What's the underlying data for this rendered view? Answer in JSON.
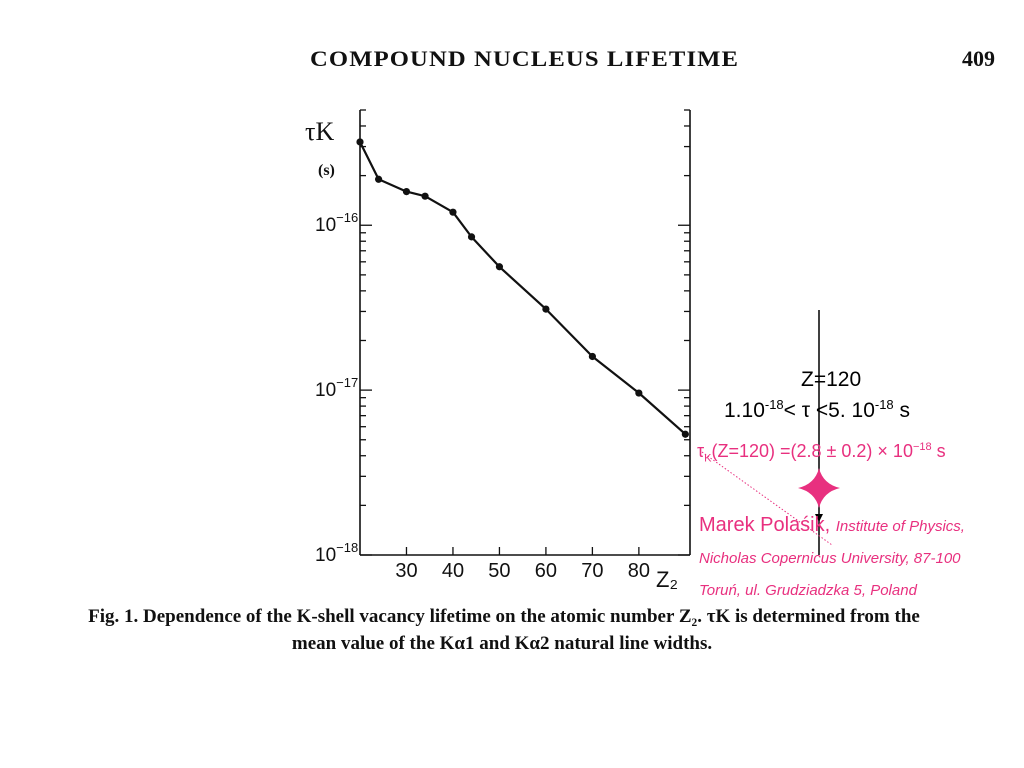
{
  "header": {
    "title": "COMPOUND NUCLEUS LIFETIME",
    "page_number": "409"
  },
  "caption": {
    "line1": "Fig. 1. Dependence of the K-shell vacancy lifetime on the atomic number Z₂. τK is determined from the",
    "line2": "mean value of the Kα1 and Kα2 natural line widths."
  },
  "annotations": {
    "z_label": "Z=120",
    "range_left": "1.10",
    "range_left_exp": "-18",
    "range_mid": "< τ <5. 10",
    "range_right_exp": "-18",
    "range_unit": " s",
    "tau_symbol": "τ",
    "tau_sub": "K",
    "tau_value_text": "(Z=120)  =(2.8 ± 0.2) × 10",
    "tau_value_exp": "−18",
    "tau_value_unit": " s",
    "author": "Marek Polaśik,",
    "institute": "Institute of Physics,",
    "affiliation_1": "Nicholas Copernicus University, 87-100",
    "affiliation_2": "Toruń, ul. Grudziadzka 5, Poland",
    "accent_color": "#e8307f"
  },
  "chart_data": {
    "type": "line",
    "yscale": "log",
    "ylabel_main": "τK",
    "ylabel_unit": "(s)",
    "xlabel": "Z₂",
    "xlim": [
      20,
      91
    ],
    "ylim": [
      1e-18,
      5e-16
    ],
    "x_ticks": [
      30,
      40,
      50,
      60,
      70,
      80
    ],
    "y_tick_values": [
      1e-16,
      1e-17,
      1e-18
    ],
    "y_tick_labels": [
      {
        "base": "10",
        "exp": "−16"
      },
      {
        "base": "10",
        "exp": "−17"
      },
      {
        "base": "10",
        "exp": "−18"
      }
    ],
    "series": [
      {
        "points": [
          {
            "x": 20,
            "y": 3.2e-16
          },
          {
            "x": 24,
            "y": 1.9e-16
          },
          {
            "x": 30,
            "y": 1.6e-16
          },
          {
            "x": 34,
            "y": 1.5e-16
          },
          {
            "x": 40,
            "y": 1.2e-16
          },
          {
            "x": 44,
            "y": 8.5e-17
          },
          {
            "x": 50,
            "y": 5.6e-17
          },
          {
            "x": 60,
            "y": 3.1e-17
          },
          {
            "x": 70,
            "y": 1.6e-17
          },
          {
            "x": 80,
            "y": 9.6e-18
          },
          {
            "x": 90,
            "y": 5.4e-18
          }
        ]
      }
    ]
  }
}
